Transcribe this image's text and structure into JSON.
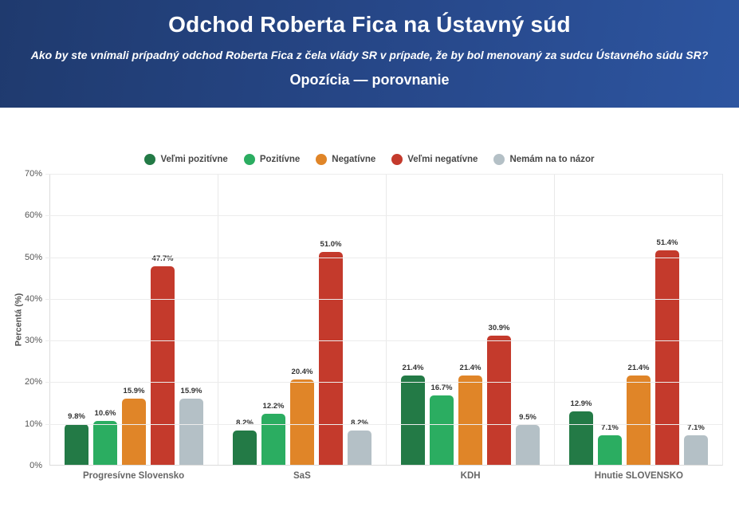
{
  "header": {
    "title": "Odchod Roberta Fica na Ústavný súd",
    "subtitle": "Ako by ste vnímali prípadný odchod Roberta Fica z čela vlády SR v prípade, že by bol menovaný za sudcu Ústavného súdu SR?",
    "section": "Opozícia — porovnanie",
    "background_start": "#1f3a6e",
    "background_end": "#2d55a0",
    "text_color": "#ffffff"
  },
  "chart_data": {
    "type": "bar",
    "title": "",
    "xlabel": "",
    "ylabel": "Percentá (%)",
    "ylim": [
      0,
      70
    ],
    "ytick_step": 10,
    "yticks": [
      "0%",
      "10%",
      "20%",
      "30%",
      "40%",
      "50%",
      "60%",
      "70%"
    ],
    "grid": true,
    "legend_position": "top",
    "value_label_suffix": "%",
    "categories": [
      "Progresívne Slovensko",
      "SaS",
      "KDH",
      "Hnutie SLOVENSKO"
    ],
    "series": [
      {
        "name": "Veľmi pozitívne",
        "color": "#237a46",
        "values": [
          9.8,
          8.2,
          21.4,
          12.9
        ]
      },
      {
        "name": "Pozitívne",
        "color": "#2bad61",
        "values": [
          10.6,
          12.2,
          16.7,
          7.1
        ]
      },
      {
        "name": "Negatívne",
        "color": "#e08528",
        "values": [
          15.9,
          20.4,
          21.4,
          21.4
        ]
      },
      {
        "name": "Veľmi negatívne",
        "color": "#c43a2c",
        "values": [
          47.7,
          51.0,
          30.9,
          51.4
        ]
      },
      {
        "name": "Nemám na to názor",
        "color": "#b4c0c6",
        "values": [
          15.9,
          8.2,
          9.5,
          7.1
        ]
      }
    ]
  }
}
